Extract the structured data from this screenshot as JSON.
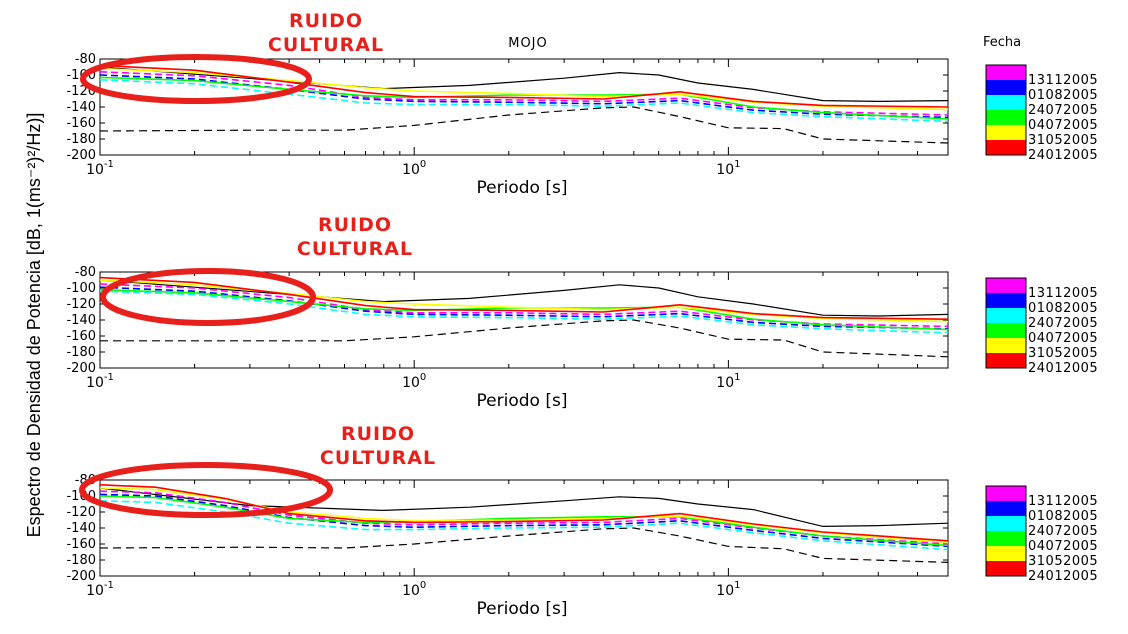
{
  "chart_data": {
    "type": "line",
    "title": "MOJO",
    "ylabel": "Espectro de Densidad de Potencia [dB, 1(ms⁻²)²/Hz)]",
    "legend": {
      "title": "Fecha",
      "placement": "right",
      "entries": [
        {
          "label": "13112005",
          "color": "#ff00ff"
        },
        {
          "label": "01082005",
          "color": "#0000ff"
        },
        {
          "label": "24072005",
          "color": "#00ffff"
        },
        {
          "label": "04072005",
          "color": "#00ff00"
        },
        {
          "label": "31052005",
          "color": "#ffff00"
        },
        {
          "label": "24012005",
          "color": "#ff0000"
        }
      ]
    },
    "xscale": "log",
    "xlim": [
      0.1,
      50
    ],
    "ylim": [
      -200,
      -80
    ],
    "xticks": [
      "10",
      "10",
      "10"
    ],
    "xtick_exponents": [
      "-1",
      "0",
      "1"
    ],
    "yticks": [
      "-80",
      "-100",
      "-120",
      "-140",
      "-160",
      "-180",
      "-200"
    ],
    "grid": false,
    "panels": [
      {
        "xlabel": "Periodo [s]",
        "annotation": {
          "line1": "RUIDO",
          "line2": "CULTURAL"
        },
        "reference_high": {
          "x": [
            0.1,
            0.8,
            1.5,
            3,
            4.5,
            6,
            8,
            12,
            20,
            30,
            50
          ],
          "y": [
            -90,
            -117,
            -113,
            -104,
            -97,
            -100,
            -110,
            -118,
            -132,
            -133,
            -132
          ]
        },
        "reference_low": {
          "x": [
            0.1,
            0.3,
            0.6,
            1,
            2,
            4,
            5,
            7,
            10,
            15,
            20,
            50
          ],
          "y": [
            -170,
            -169,
            -169,
            -163,
            -150,
            -141,
            -140,
            -152,
            -166,
            -167,
            -180,
            -185
          ]
        },
        "series": [
          {
            "color": "#ff00ff",
            "dashed": true,
            "x": [
              0.1,
              0.2,
              0.4,
              0.7,
              1,
              2,
              4,
              7,
              12,
              20,
              50
            ],
            "y": [
              -96,
              -101,
              -113,
              -128,
              -131,
              -131,
              -133,
              -129,
              -141,
              -146,
              -150
            ]
          },
          {
            "color": "#0000ff",
            "dashed": true,
            "x": [
              0.1,
              0.2,
              0.4,
              0.7,
              1,
              2,
              4,
              7,
              12,
              20,
              50
            ],
            "y": [
              -100,
              -105,
              -118,
              -130,
              -133,
              -134,
              -136,
              -132,
              -144,
              -149,
              -153
            ]
          },
          {
            "color": "#00ffff",
            "dashed": true,
            "x": [
              0.1,
              0.2,
              0.4,
              0.7,
              1,
              2,
              4,
              7,
              12,
              20,
              50
            ],
            "y": [
              -106,
              -111,
              -124,
              -135,
              -137,
              -137,
              -139,
              -135,
              -147,
              -152,
              -158
            ]
          },
          {
            "color": "#00ff00",
            "dashed": false,
            "x": [
              0.1,
              0.2,
              0.4,
              0.7,
              1,
              2,
              4,
              7,
              12,
              20,
              50
            ],
            "y": [
              -103,
              -107,
              -118,
              -126,
              -128,
              -125,
              -125,
              -124,
              -140,
              -147,
              -155
            ]
          },
          {
            "color": "#ffff00",
            "dashed": false,
            "x": [
              0.1,
              0.2,
              0.4,
              0.7,
              1,
              2,
              4,
              7,
              12,
              20,
              50
            ],
            "y": [
              -92,
              -97,
              -107,
              -116,
              -120,
              -123,
              -127,
              -124,
              -134,
              -139,
              -143
            ]
          },
          {
            "color": "#ff0000",
            "dashed": false,
            "x": [
              0.1,
              0.2,
              0.4,
              0.7,
              1,
              2,
              4,
              7,
              12,
              20,
              50
            ],
            "y": [
              -88,
              -94,
              -109,
              -122,
              -127,
              -128,
              -130,
              -121,
              -133,
              -138,
              -140
            ]
          }
        ]
      },
      {
        "xlabel": "Periodo [s]",
        "annotation": {
          "line1": "RUIDO",
          "line2": "CULTURAL"
        },
        "reference_high": {
          "x": [
            0.1,
            0.8,
            1.5,
            3,
            4.5,
            6,
            8,
            12,
            20,
            30,
            50
          ],
          "y": [
            -90,
            -117,
            -113,
            -103,
            -96,
            -100,
            -111,
            -120,
            -134,
            -135,
            -133
          ]
        },
        "reference_low": {
          "x": [
            0.1,
            0.3,
            0.6,
            1,
            2,
            4,
            5,
            7,
            10,
            15,
            20,
            50
          ],
          "y": [
            -166,
            -166,
            -166,
            -161,
            -150,
            -141,
            -140,
            -150,
            -164,
            -165,
            -180,
            -186
          ]
        },
        "series": [
          {
            "color": "#ff00ff",
            "dashed": true,
            "x": [
              0.1,
              0.2,
              0.4,
              0.7,
              1,
              2,
              4,
              7,
              12,
              20,
              50
            ],
            "y": [
              -95,
              -100,
              -112,
              -127,
              -131,
              -131,
              -133,
              -129,
              -140,
              -145,
              -148
            ]
          },
          {
            "color": "#0000ff",
            "dashed": true,
            "x": [
              0.1,
              0.2,
              0.4,
              0.7,
              1,
              2,
              4,
              7,
              12,
              20,
              50
            ],
            "y": [
              -99,
              -104,
              -116,
              -129,
              -133,
              -134,
              -136,
              -132,
              -143,
              -148,
              -151
            ]
          },
          {
            "color": "#00ffff",
            "dashed": true,
            "x": [
              0.1,
              0.2,
              0.4,
              0.7,
              1,
              2,
              4,
              7,
              12,
              20,
              50
            ],
            "y": [
              -104,
              -108,
              -120,
              -133,
              -136,
              -137,
              -139,
              -135,
              -146,
              -151,
              -156
            ]
          },
          {
            "color": "#00ff00",
            "dashed": false,
            "x": [
              0.1,
              0.2,
              0.4,
              0.7,
              1,
              2,
              4,
              7,
              12,
              20,
              50
            ],
            "y": [
              -102,
              -106,
              -117,
              -126,
              -128,
              -125,
              -125,
              -124,
              -139,
              -146,
              -152
            ]
          },
          {
            "color": "#ffff00",
            "dashed": false,
            "x": [
              0.1,
              0.2,
              0.4,
              0.7,
              1,
              2,
              4,
              7,
              12,
              20,
              50
            ],
            "y": [
              -90,
              -96,
              -107,
              -117,
              -120,
              -124,
              -127,
              -124,
              -133,
              -138,
              -142
            ]
          },
          {
            "color": "#ff0000",
            "dashed": false,
            "x": [
              0.1,
              0.2,
              0.4,
              0.7,
              1,
              2,
              4,
              7,
              12,
              20,
              50
            ],
            "y": [
              -87,
              -93,
              -108,
              -122,
              -127,
              -128,
              -130,
              -121,
              -132,
              -137,
              -139
            ]
          }
        ]
      },
      {
        "xlabel": "Periodo [s]",
        "annotation": {
          "line1": "RUIDO",
          "line2": "CULTURAL"
        },
        "reference_high": {
          "x": [
            0.1,
            0.3,
            0.8,
            1.5,
            3,
            4.5,
            6,
            8,
            12,
            20,
            30,
            50
          ],
          "y": [
            -90,
            -112,
            -118,
            -114,
            -106,
            -101,
            -103,
            -110,
            -117,
            -138,
            -137,
            -134
          ]
        },
        "reference_low": {
          "x": [
            0.1,
            0.3,
            0.6,
            1,
            2,
            4,
            5,
            7,
            10,
            15,
            20,
            50
          ],
          "y": [
            -165,
            -164,
            -165,
            -160,
            -150,
            -141,
            -140,
            -150,
            -163,
            -166,
            -178,
            -183
          ]
        },
        "series": [
          {
            "color": "#ff00ff",
            "dashed": true,
            "x": [
              0.1,
              0.15,
              0.25,
              0.4,
              0.7,
              1,
              2,
              4,
              7,
              12,
              20,
              50
            ],
            "y": [
              -94,
              -96,
              -108,
              -124,
              -134,
              -136,
              -134,
              -133,
              -128,
              -140,
              -150,
              -160
            ]
          },
          {
            "color": "#0000ff",
            "dashed": true,
            "x": [
              0.1,
              0.15,
              0.25,
              0.4,
              0.7,
              1,
              2,
              4,
              7,
              12,
              20,
              50
            ],
            "y": [
              -98,
              -100,
              -112,
              -127,
              -137,
              -139,
              -137,
              -136,
              -131,
              -143,
              -153,
              -163
            ]
          },
          {
            "color": "#00ffff",
            "dashed": true,
            "x": [
              0.1,
              0.15,
              0.25,
              0.4,
              0.7,
              1,
              2,
              4,
              7,
              12,
              20,
              50
            ],
            "y": [
              -106,
              -108,
              -120,
              -134,
              -142,
              -142,
              -140,
              -139,
              -134,
              -146,
              -156,
              -167
            ]
          },
          {
            "color": "#00ff00",
            "dashed": false,
            "x": [
              0.1,
              0.15,
              0.25,
              0.4,
              0.7,
              1,
              2,
              4,
              7,
              12,
              20,
              50
            ],
            "y": [
              -100,
              -102,
              -114,
              -128,
              -133,
              -132,
              -128,
              -126,
              -126,
              -139,
              -150,
              -162
            ]
          },
          {
            "color": "#ffff00",
            "dashed": false,
            "x": [
              0.1,
              0.15,
              0.25,
              0.4,
              0.7,
              1,
              2,
              4,
              7,
              12,
              20,
              50
            ],
            "y": [
              -90,
              -92,
              -104,
              -120,
              -128,
              -131,
              -130,
              -128,
              -125,
              -136,
              -146,
              -158
            ]
          },
          {
            "color": "#ff0000",
            "dashed": false,
            "x": [
              0.1,
              0.15,
              0.25,
              0.4,
              0.7,
              1,
              2,
              4,
              7,
              12,
              20,
              50
            ],
            "y": [
              -86,
              -89,
              -103,
              -122,
              -131,
              -133,
              -132,
              -130,
              -122,
              -135,
              -145,
              -156
            ]
          }
        ]
      }
    ]
  }
}
